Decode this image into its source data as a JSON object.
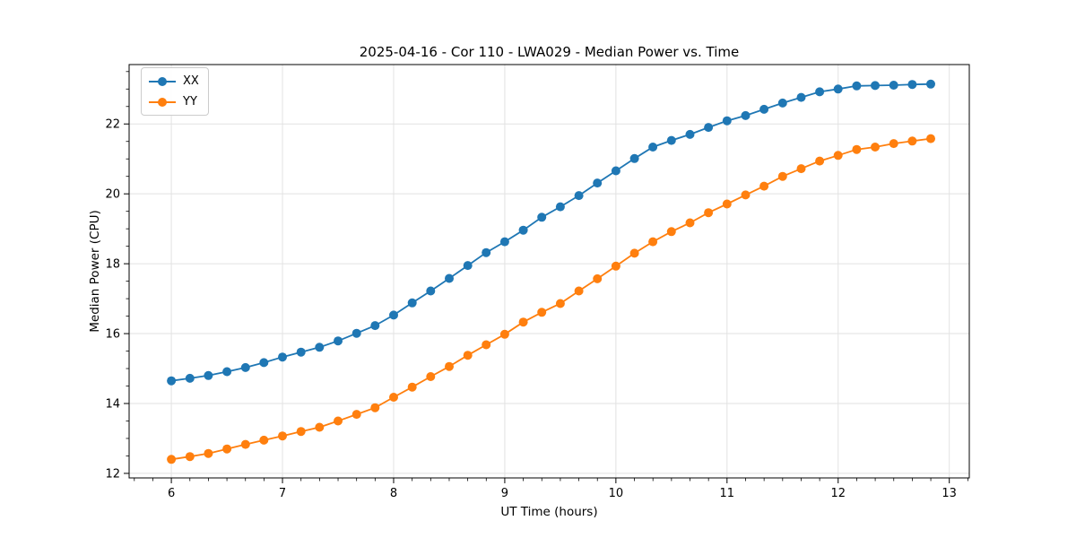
{
  "chart_data": {
    "type": "line",
    "title": "2025-04-16 - Cor 110 - LWA029 - Median Power vs. Time",
    "xlabel": "UT Time (hours)",
    "ylabel": "Median Power (CPU)",
    "xlim": [
      5.62,
      13.18
    ],
    "ylim": [
      11.87,
      23.7
    ],
    "xticks": [
      6,
      7,
      8,
      9,
      10,
      11,
      12,
      13
    ],
    "yticks": [
      12,
      14,
      16,
      18,
      20,
      22
    ],
    "x_minor_step": 0.16667,
    "y_minor_step": 0.5,
    "grid": true,
    "legend_position": "upper-left",
    "marker": "circle",
    "x": [
      6,
      6.167,
      6.333,
      6.5,
      6.667,
      6.833,
      7,
      7.167,
      7.333,
      7.5,
      7.667,
      7.833,
      8,
      8.167,
      8.333,
      8.5,
      8.667,
      8.833,
      9,
      9.167,
      9.333,
      9.5,
      9.667,
      9.833,
      10,
      10.167,
      10.333,
      10.5,
      10.667,
      10.833,
      11,
      11.167,
      11.333,
      11.5,
      11.667,
      11.833,
      12,
      12.167,
      12.333,
      12.5,
      12.667,
      12.833
    ],
    "series": [
      {
        "name": "XX",
        "color": "#1f77b4",
        "values": [
          14.65,
          14.72,
          14.8,
          14.91,
          15.03,
          15.17,
          15.33,
          15.47,
          15.61,
          15.79,
          16.01,
          16.23,
          16.53,
          16.88,
          17.22,
          17.58,
          17.95,
          18.32,
          18.63,
          18.96,
          19.33,
          19.63,
          19.95,
          20.31,
          20.66,
          21.01,
          21.34,
          21.53,
          21.7,
          21.9,
          22.09,
          22.24,
          22.42,
          22.6,
          22.76,
          22.92,
          23.0,
          23.09,
          23.1,
          23.11,
          23.13,
          23.14
        ]
      },
      {
        "name": "YY",
        "color": "#ff7f0e",
        "values": [
          12.4,
          12.48,
          12.57,
          12.7,
          12.83,
          12.95,
          13.07,
          13.2,
          13.32,
          13.5,
          13.69,
          13.88,
          14.18,
          14.47,
          14.77,
          15.06,
          15.38,
          15.68,
          15.98,
          16.33,
          16.61,
          16.86,
          17.22,
          17.57,
          17.93,
          18.3,
          18.63,
          18.92,
          19.17,
          19.46,
          19.71,
          19.97,
          20.22,
          20.5,
          20.72,
          20.94,
          21.1,
          21.27,
          21.34,
          21.44,
          21.51,
          21.58
        ]
      }
    ]
  }
}
